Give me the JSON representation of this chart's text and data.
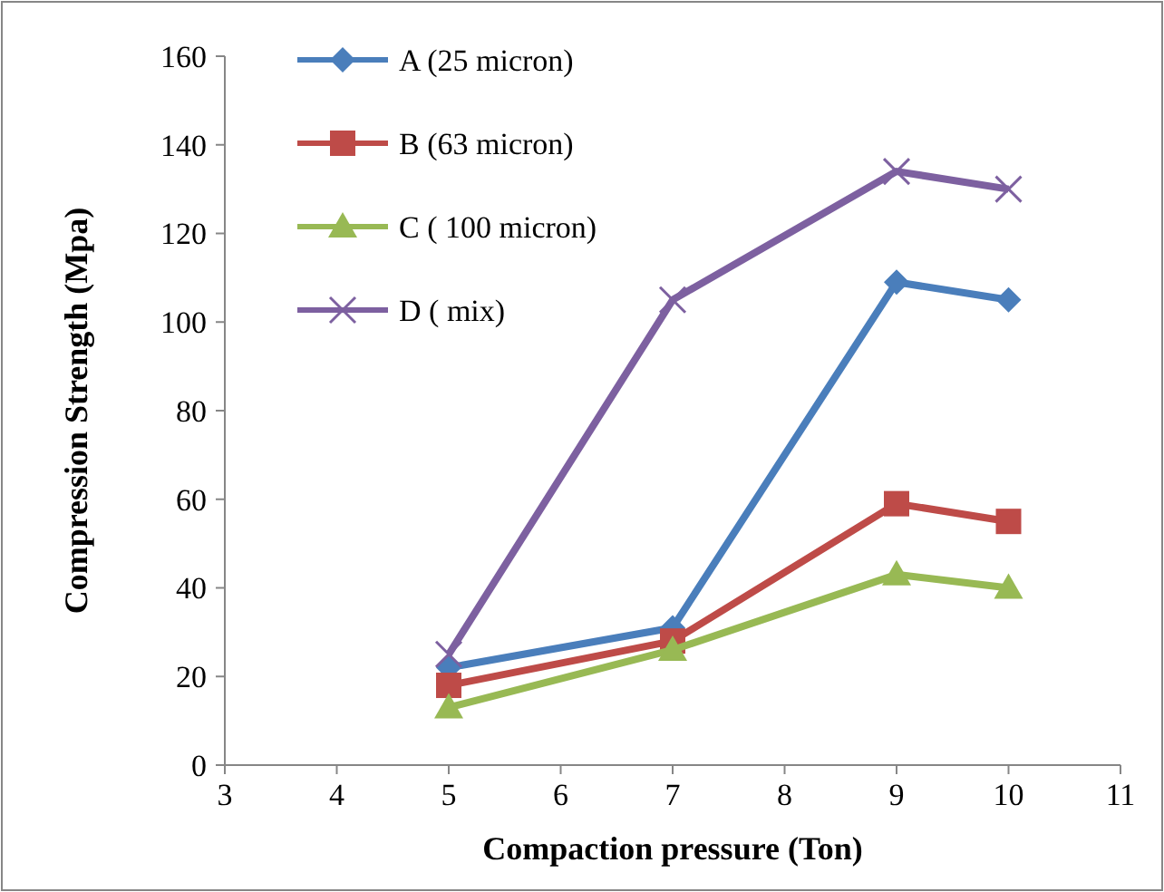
{
  "chart_data": {
    "type": "line",
    "xlabel": "Compaction pressure (Ton)",
    "ylabel": "Compression Strength (Mpa)",
    "x": [
      5,
      7,
      9,
      10
    ],
    "xlim": [
      3,
      11
    ],
    "xticks": [
      3,
      4,
      5,
      6,
      7,
      8,
      9,
      10,
      11
    ],
    "ylim": [
      0,
      160
    ],
    "yticks": [
      0,
      20,
      40,
      60,
      80,
      100,
      120,
      140,
      160
    ],
    "grid": false,
    "legend": "top left",
    "series": [
      {
        "name": "A (25 micron)",
        "color": "#4a7ebb",
        "marker": "diamond",
        "values": [
          22,
          31,
          109,
          105
        ]
      },
      {
        "name": "B (63 micron)",
        "color": "#be4b48",
        "marker": "square",
        "values": [
          18,
          28,
          59,
          55
        ]
      },
      {
        "name": "C ( 100 micron)",
        "color": "#98b954",
        "marker": "triangle",
        "values": [
          13,
          26,
          43,
          40
        ]
      },
      {
        "name": "D ( mix)",
        "color": "#7d60a0",
        "marker": "cross",
        "values": [
          25,
          105,
          134,
          130
        ]
      }
    ]
  }
}
